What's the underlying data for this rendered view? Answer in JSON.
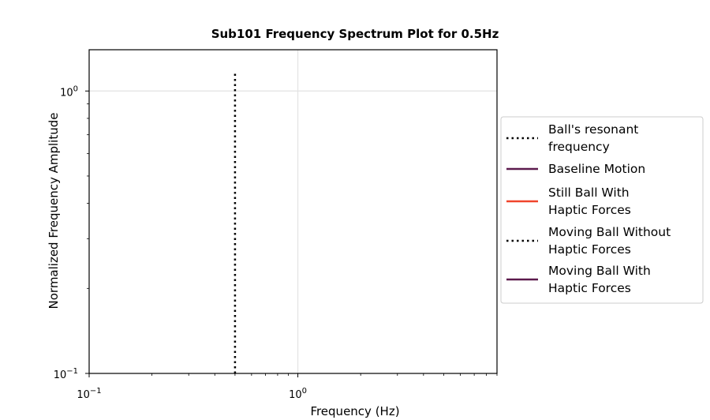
{
  "chart_data": {
    "type": "line",
    "title": "Sub101 Frequency Spectrum Plot for 0.5Hz",
    "xlabel": "Frequency (Hz)",
    "ylabel": "Normalized Frequency Amplitude",
    "xscale": "log",
    "yscale": "log",
    "xlim": [
      0.1,
      9
    ],
    "ylim": [
      0.1,
      1.4
    ],
    "grid": true,
    "x_ticks": [
      {
        "value": 0.1,
        "base": "10",
        "exp": "−1"
      },
      {
        "value": 1,
        "base": "10",
        "exp": "0"
      }
    ],
    "y_ticks": [
      {
        "value": 0.1,
        "base": "10",
        "exp": "−1"
      },
      {
        "value": 1,
        "base": "10",
        "exp": "0"
      }
    ],
    "legend_position": "outside-right",
    "series": [
      {
        "name": "Ball's resonant\nfrequency",
        "style": "dotted",
        "color": "#000000",
        "x": [
          0.5,
          0.5
        ],
        "y": [
          0.1,
          1.16
        ]
      },
      {
        "name": "Baseline Motion",
        "style": "solid",
        "color": "#5c1a4d",
        "x": [],
        "y": []
      },
      {
        "name": "Still Ball With\nHaptic Forces",
        "style": "solid",
        "color": "#f0452c",
        "x": [],
        "y": []
      },
      {
        "name": "Moving Ball Without\nHaptic Forces",
        "style": "dotted",
        "color": "#000000",
        "x": [],
        "y": []
      },
      {
        "name": "Moving Ball With\nHaptic Forces",
        "style": "solid",
        "color": "#5c1a4d",
        "x": [],
        "y": []
      }
    ]
  }
}
